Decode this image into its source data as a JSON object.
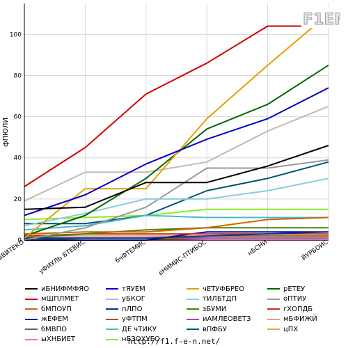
{
  "logo": {
    "text": "F1EN"
  },
  "footer": {
    "url": "http://f1.f-e-n.net/"
  },
  "chart_data": {
    "type": "line",
    "ylabel": "фПЮЛИ",
    "xlabel": "",
    "ylim": [
      0,
      115
    ],
    "yticks": [
      0,
      20,
      40,
      60,
      80,
      100
    ],
    "grid": true,
    "legend_position": "bottom",
    "categories": [
      "вВИТЕКО",
      "уФИУЛЬ БТЕВИС",
      "бчФТЕМИС",
      "еНИМИС-ПТИБОС",
      "нБСНИ",
      "ЙУРБОИС"
    ],
    "series": [
      {
        "name": "иБНИФМФЯО",
        "color": "#000000",
        "values": [
          15,
          16,
          28,
          28,
          36,
          46
        ]
      },
      {
        "name": "тЯУЕМ",
        "color": "#0000cc",
        "values": [
          12,
          22,
          37,
          49,
          59,
          74
        ]
      },
      {
        "name": "чЕТУФБРЕО",
        "color": "#e6a000",
        "values": [
          1,
          25,
          25,
          59,
          85,
          110
        ]
      },
      {
        "name": "рЕТЕУ",
        "color": "#006600",
        "values": [
          2,
          12,
          30,
          54,
          66,
          85
        ]
      },
      {
        "name": "мШПЛМЕТ",
        "color": "#cc0000",
        "values": [
          26,
          45,
          71,
          86,
          104,
          104
        ]
      },
      {
        "name": "уБКОГ",
        "color": "#c8b8b0",
        "values": [
          19,
          33,
          33,
          38,
          53,
          65
        ]
      },
      {
        "name": "тИЛБТДП",
        "color": "#88ccdd",
        "values": [
          7,
          13,
          20,
          20,
          24,
          30
        ]
      },
      {
        "name": "оПТИУ",
        "color": "#999999",
        "values": [
          0,
          6,
          16,
          35,
          35,
          39
        ]
      },
      {
        "name": "бМПОУП",
        "color": "#cc6600",
        "values": [
          3,
          4,
          4,
          6,
          10,
          11
        ]
      },
      {
        "name": "пЛПО",
        "color": "#003399",
        "values": [
          1,
          1,
          1,
          2,
          3,
          4
        ]
      },
      {
        "name": "зБУМИ",
        "color": "#448800",
        "values": [
          1,
          3,
          5,
          6,
          6,
          6
        ]
      },
      {
        "name": "гХОПДБ",
        "color": "#cc3300",
        "values": [
          2,
          3,
          3,
          3,
          3,
          3
        ]
      },
      {
        "name": "жЕФЕМ",
        "color": "#0000aa",
        "values": [
          0,
          0,
          0,
          4,
          4,
          4
        ]
      },
      {
        "name": "уФТПМ",
        "color": "#886600",
        "values": [
          0,
          0,
          0,
          2,
          2,
          2
        ]
      },
      {
        "name": "иАМЛЕОВЕТЗ",
        "color": "#aa44aa",
        "values": [
          0,
          0,
          0,
          1,
          1,
          1
        ]
      },
      {
        "name": "мБФИЖЙ",
        "color": "#e0a090",
        "values": [
          2,
          2,
          2,
          2,
          2,
          2
        ]
      },
      {
        "name": "бМВПО",
        "color": "#666666",
        "values": [
          0,
          1,
          1,
          1,
          1,
          1
        ]
      },
      {
        "name": "ДЕ чТИКУ",
        "color": "#44bbcc",
        "values": [
          5,
          7,
          12,
          11,
          11,
          11
        ]
      },
      {
        "name": "вПФБУ",
        "color": "#005577",
        "values": [
          8,
          8,
          12,
          24,
          30,
          38
        ]
      },
      {
        "name": "цПХ",
        "color": "#ddaa44",
        "values": [
          0,
          0,
          0,
          1,
          1,
          1
        ]
      },
      {
        "name": "ыХНБИЕТ",
        "color": "#ff66cc",
        "values": [
          0,
          0,
          0,
          0,
          0,
          0
        ]
      },
      {
        "name": "нБЗОХУЕО",
        "color": "#88ee22",
        "values": [
          10,
          11,
          12,
          15,
          15,
          15
        ]
      }
    ]
  }
}
